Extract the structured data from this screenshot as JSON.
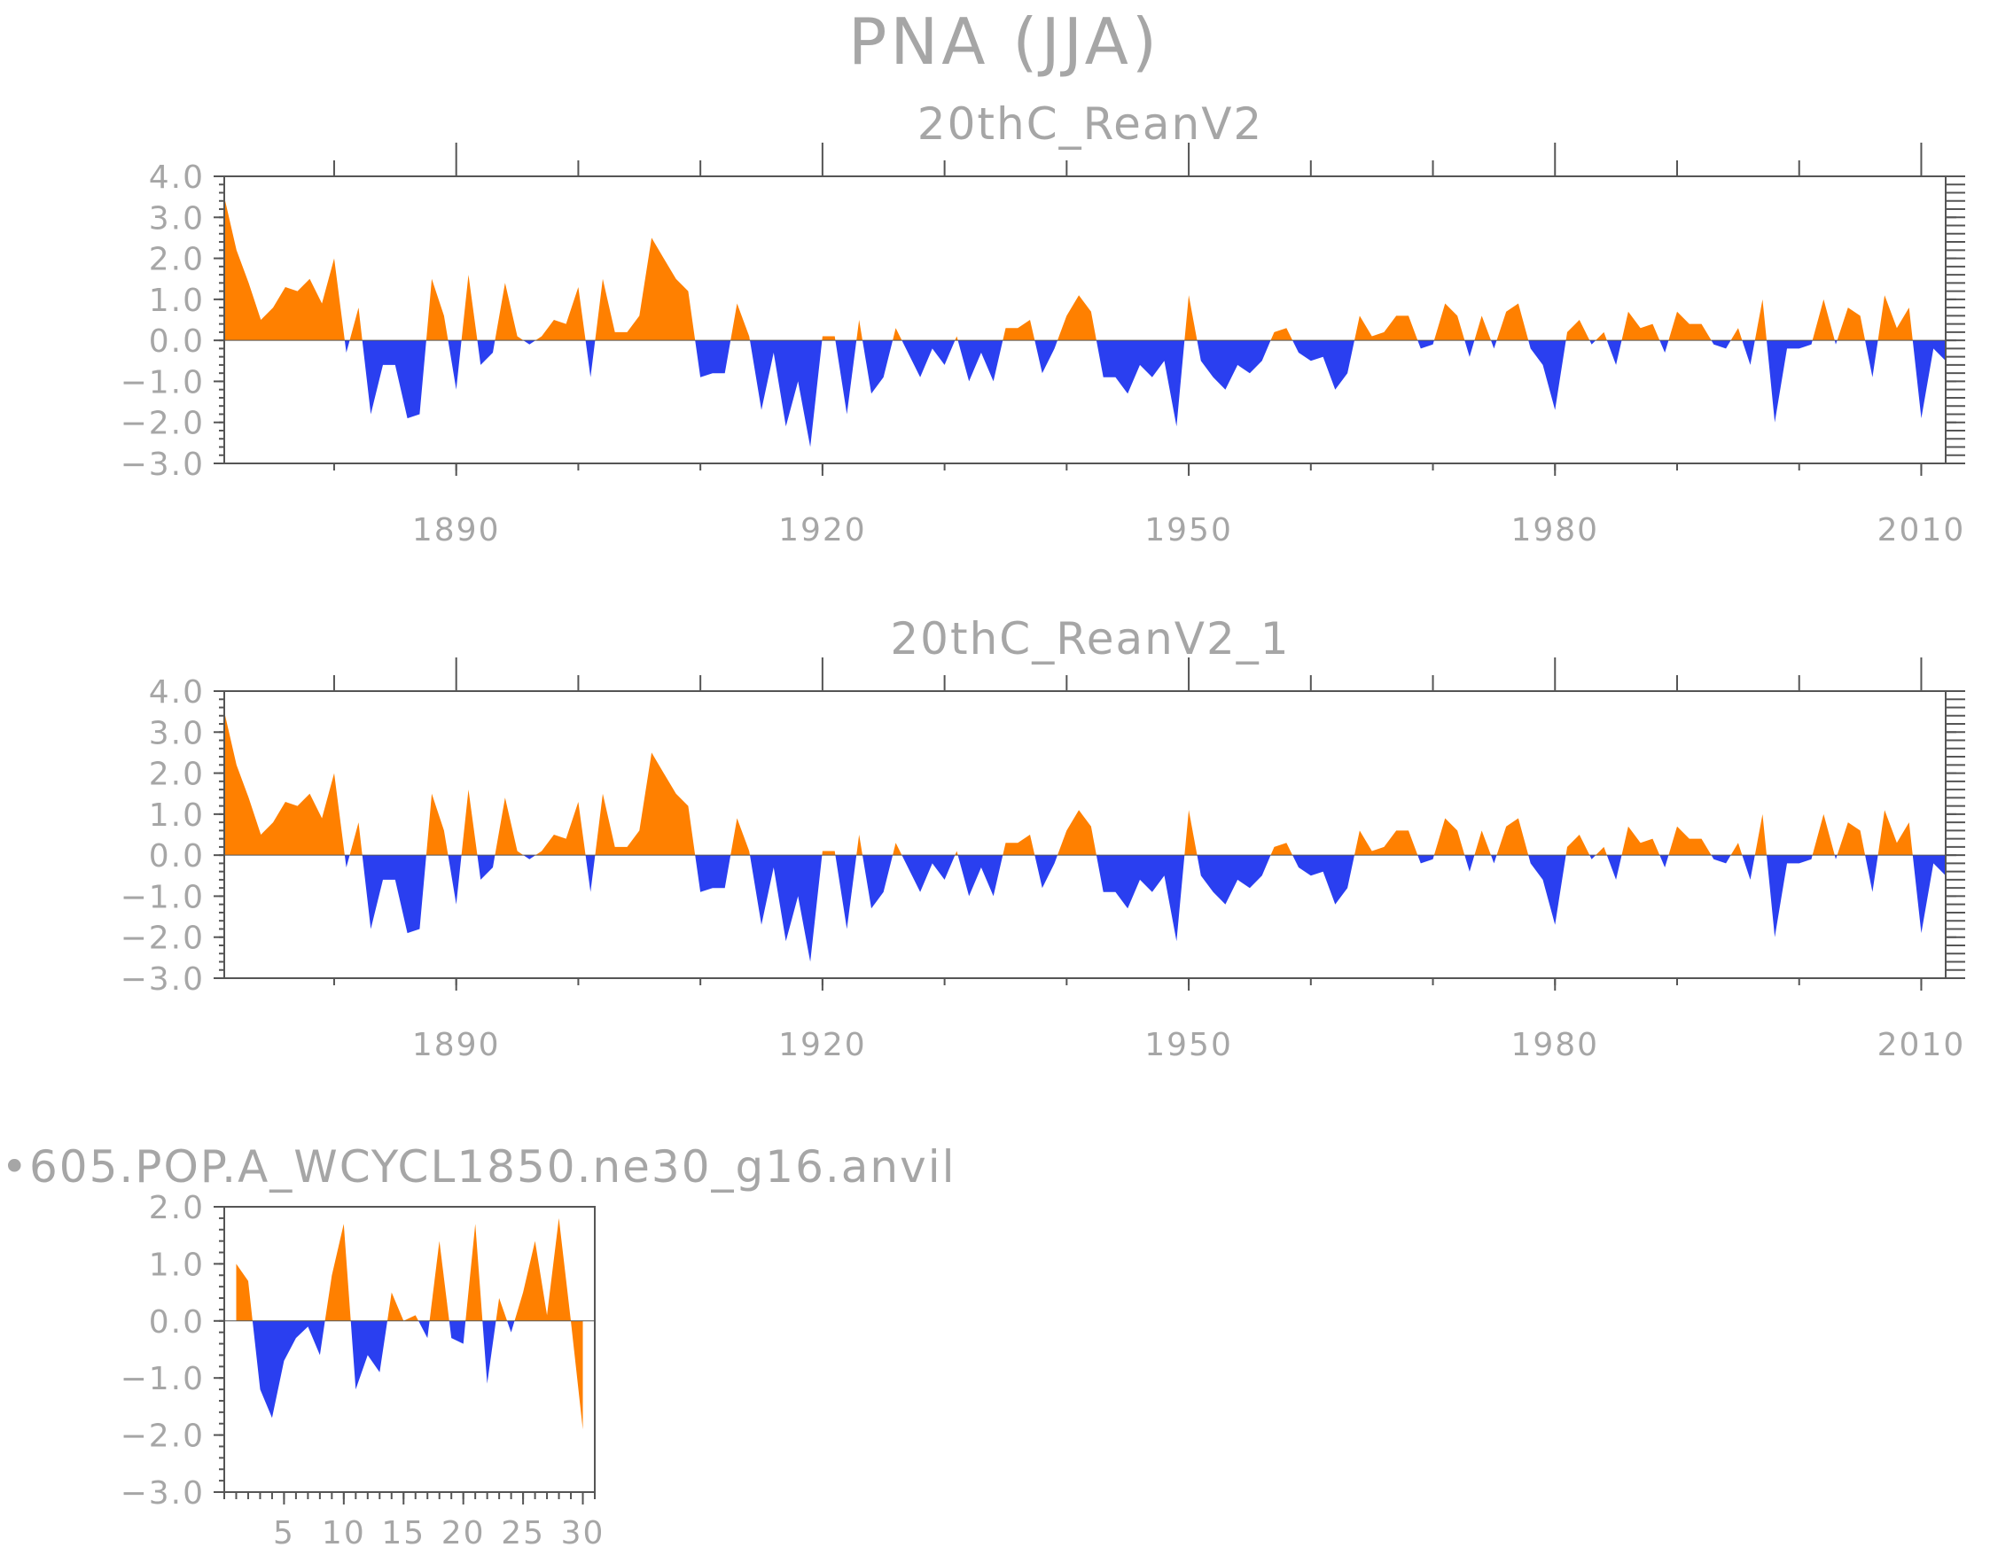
{
  "figure": {
    "title": "PNA (JJA)"
  },
  "colors": {
    "positive": "#ff8000",
    "negative": "#2a3ff0",
    "text": "#a6a6a6",
    "axis": "#555555"
  },
  "chart_data": [
    {
      "type": "area",
      "title": "20thC_ReanV2",
      "xlabel": "",
      "ylabel": "",
      "xlim": [
        1871,
        2012
      ],
      "ylim": [
        -3.0,
        4.0
      ],
      "yticks": [
        "4.0",
        "3.0",
        "2.0",
        "1.0",
        "0.0",
        "−1.0",
        "−2.0",
        "−3.0"
      ],
      "xticks": [
        "1890",
        "1920",
        "1950",
        "1980",
        "2010"
      ],
      "x_start": 1871,
      "values": [
        3.5,
        2.2,
        1.4,
        0.5,
        0.8,
        1.3,
        1.2,
        1.5,
        0.9,
        2.0,
        -0.3,
        0.8,
        -1.8,
        -0.6,
        -0.6,
        -1.9,
        -1.8,
        1.5,
        0.6,
        -1.2,
        1.6,
        -0.6,
        -0.3,
        1.4,
        0.1,
        -0.1,
        0.1,
        0.5,
        0.4,
        1.3,
        -0.9,
        1.5,
        0.2,
        0.2,
        0.6,
        2.5,
        2.0,
        1.5,
        1.2,
        -0.9,
        -0.8,
        -0.8,
        0.9,
        0.1,
        -1.7,
        -0.3,
        -2.1,
        -1.0,
        -2.6,
        0.1,
        0.1,
        -1.8,
        0.5,
        -1.3,
        -0.9,
        0.3,
        -0.3,
        -0.9,
        -0.2,
        -0.6,
        0.1,
        -1.0,
        -0.3,
        -1.0,
        0.3,
        0.3,
        0.5,
        -0.8,
        -0.2,
        0.6,
        1.1,
        0.7,
        -0.9,
        -0.9,
        -1.3,
        -0.6,
        -0.9,
        -0.5,
        -2.1,
        1.1,
        -0.5,
        -0.9,
        -1.2,
        -0.6,
        -0.8,
        -0.5,
        0.2,
        0.3,
        -0.3,
        -0.5,
        -0.4,
        -1.2,
        -0.8,
        0.6,
        0.1,
        0.2,
        0.6,
        0.6,
        -0.2,
        -0.1,
        0.9,
        0.6,
        -0.4,
        0.6,
        -0.2,
        0.7,
        0.9,
        -0.2,
        -0.6,
        -1.7,
        0.2,
        0.5,
        -0.1,
        0.2,
        -0.6,
        0.7,
        0.3,
        0.4,
        -0.3,
        0.7,
        0.4,
        0.4,
        -0.1,
        -0.2,
        0.3,
        -0.6,
        1.0,
        -2.0,
        -0.2,
        -0.2,
        -0.1,
        1.0,
        -0.1,
        0.8,
        0.6,
        -0.9,
        1.1,
        0.3,
        0.8,
        -1.9,
        -0.2,
        -0.5
      ]
    },
    {
      "type": "area",
      "title": "20thC_ReanV2_1",
      "xlabel": "",
      "ylabel": "",
      "xlim": [
        1871,
        2012
      ],
      "ylim": [
        -3.0,
        4.0
      ],
      "yticks": [
        "4.0",
        "3.0",
        "2.0",
        "1.0",
        "0.0",
        "−1.0",
        "−2.0",
        "−3.0"
      ],
      "xticks": [
        "1890",
        "1920",
        "1950",
        "1980",
        "2010"
      ],
      "x_start": 1871,
      "values": [
        3.5,
        2.2,
        1.4,
        0.5,
        0.8,
        1.3,
        1.2,
        1.5,
        0.9,
        2.0,
        -0.3,
        0.8,
        -1.8,
        -0.6,
        -0.6,
        -1.9,
        -1.8,
        1.5,
        0.6,
        -1.2,
        1.6,
        -0.6,
        -0.3,
        1.4,
        0.1,
        -0.1,
        0.1,
        0.5,
        0.4,
        1.3,
        -0.9,
        1.5,
        0.2,
        0.2,
        0.6,
        2.5,
        2.0,
        1.5,
        1.2,
        -0.9,
        -0.8,
        -0.8,
        0.9,
        0.1,
        -1.7,
        -0.3,
        -2.1,
        -1.0,
        -2.6,
        0.1,
        0.1,
        -1.8,
        0.5,
        -1.3,
        -0.9,
        0.3,
        -0.3,
        -0.9,
        -0.2,
        -0.6,
        0.1,
        -1.0,
        -0.3,
        -1.0,
        0.3,
        0.3,
        0.5,
        -0.8,
        -0.2,
        0.6,
        1.1,
        0.7,
        -0.9,
        -0.9,
        -1.3,
        -0.6,
        -0.9,
        -0.5,
        -2.1,
        1.1,
        -0.5,
        -0.9,
        -1.2,
        -0.6,
        -0.8,
        -0.5,
        0.2,
        0.3,
        -0.3,
        -0.5,
        -0.4,
        -1.2,
        -0.8,
        0.6,
        0.1,
        0.2,
        0.6,
        0.6,
        -0.2,
        -0.1,
        0.9,
        0.6,
        -0.4,
        0.6,
        -0.2,
        0.7,
        0.9,
        -0.2,
        -0.6,
        -1.7,
        0.2,
        0.5,
        -0.1,
        0.2,
        -0.6,
        0.7,
        0.3,
        0.4,
        -0.3,
        0.7,
        0.4,
        0.4,
        -0.1,
        -0.2,
        0.3,
        -0.6,
        1.0,
        -2.0,
        -0.2,
        -0.2,
        -0.1,
        1.0,
        -0.1,
        0.8,
        0.6,
        -0.9,
        1.1,
        0.3,
        0.8,
        -1.9,
        -0.2,
        -0.5
      ]
    },
    {
      "type": "area",
      "title": "•605.POP.A_WCYCL1850.ne30_g16.anvil",
      "xlabel": "",
      "ylabel": "",
      "xlim": [
        0,
        31
      ],
      "ylim": [
        -3.0,
        2.0
      ],
      "yticks": [
        "2.0",
        "1.0",
        "0.0",
        "−1.0",
        "−2.0",
        "−3.0"
      ],
      "xticks": [
        "5",
        "10",
        "15",
        "20",
        "25",
        "30"
      ],
      "x_start": 1,
      "values": [
        1.0,
        0.7,
        -1.2,
        -1.7,
        -0.7,
        -0.3,
        -0.1,
        -0.6,
        0.8,
        1.7,
        -1.2,
        -0.6,
        -0.9,
        0.5,
        0.0,
        0.1,
        -0.3,
        1.4,
        -0.3,
        -0.4,
        1.7,
        -1.1,
        0.4,
        -0.2,
        0.5,
        1.4,
        0.1,
        1.8,
        0.0,
        -1.9
      ]
    }
  ]
}
